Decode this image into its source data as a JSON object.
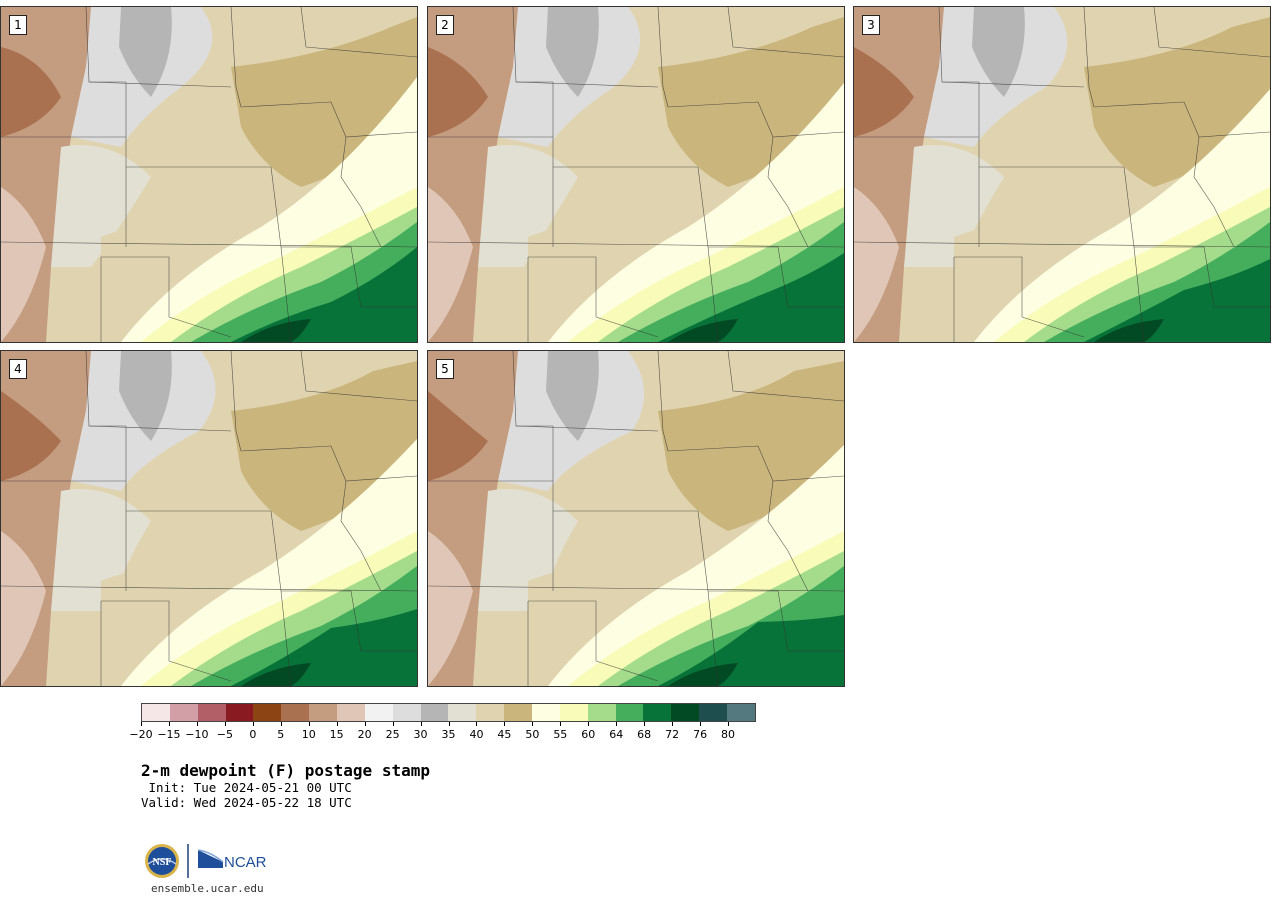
{
  "panels": [
    {
      "label": "1",
      "variant": 0
    },
    {
      "label": "2",
      "variant": 1
    },
    {
      "label": "3",
      "variant": 2
    },
    {
      "label": "4",
      "variant": 3
    },
    {
      "label": "5",
      "variant": 4
    }
  ],
  "colorbar": {
    "colors": [
      "#f5e7e8",
      "#d29fa6",
      "#b35f68",
      "#891a22",
      "#8c4414",
      "#aa7150",
      "#c49c80",
      "#e0c6b6",
      "#f2f2f2",
      "#dddddd",
      "#b5b5b5",
      "#e2e0d2",
      "#e0d4b0",
      "#cab57c",
      "#fefee3",
      "#f8fcb8",
      "#a4dc8c",
      "#45ae5c",
      "#087339",
      "#014a24",
      "#1e4f4e",
      "#547a7f"
    ],
    "tick_labels": [
      "−20",
      "−15",
      "−10",
      "−5",
      "0",
      "5",
      "10",
      "15",
      "20",
      "25",
      "30",
      "35",
      "40",
      "45",
      "50",
      "55",
      "60",
      "64",
      "68",
      "72",
      "76",
      "80"
    ]
  },
  "title": "2-m dewpoint (F) postage stamp",
  "init": " Init: Tue 2024-05-21 00 UTC",
  "valid": "Valid: Wed 2024-05-22 18 UTC",
  "logos": {
    "nsf_text": "NSF",
    "ncar_text": "NCAR"
  },
  "site": "ensemble.ucar.edu"
}
